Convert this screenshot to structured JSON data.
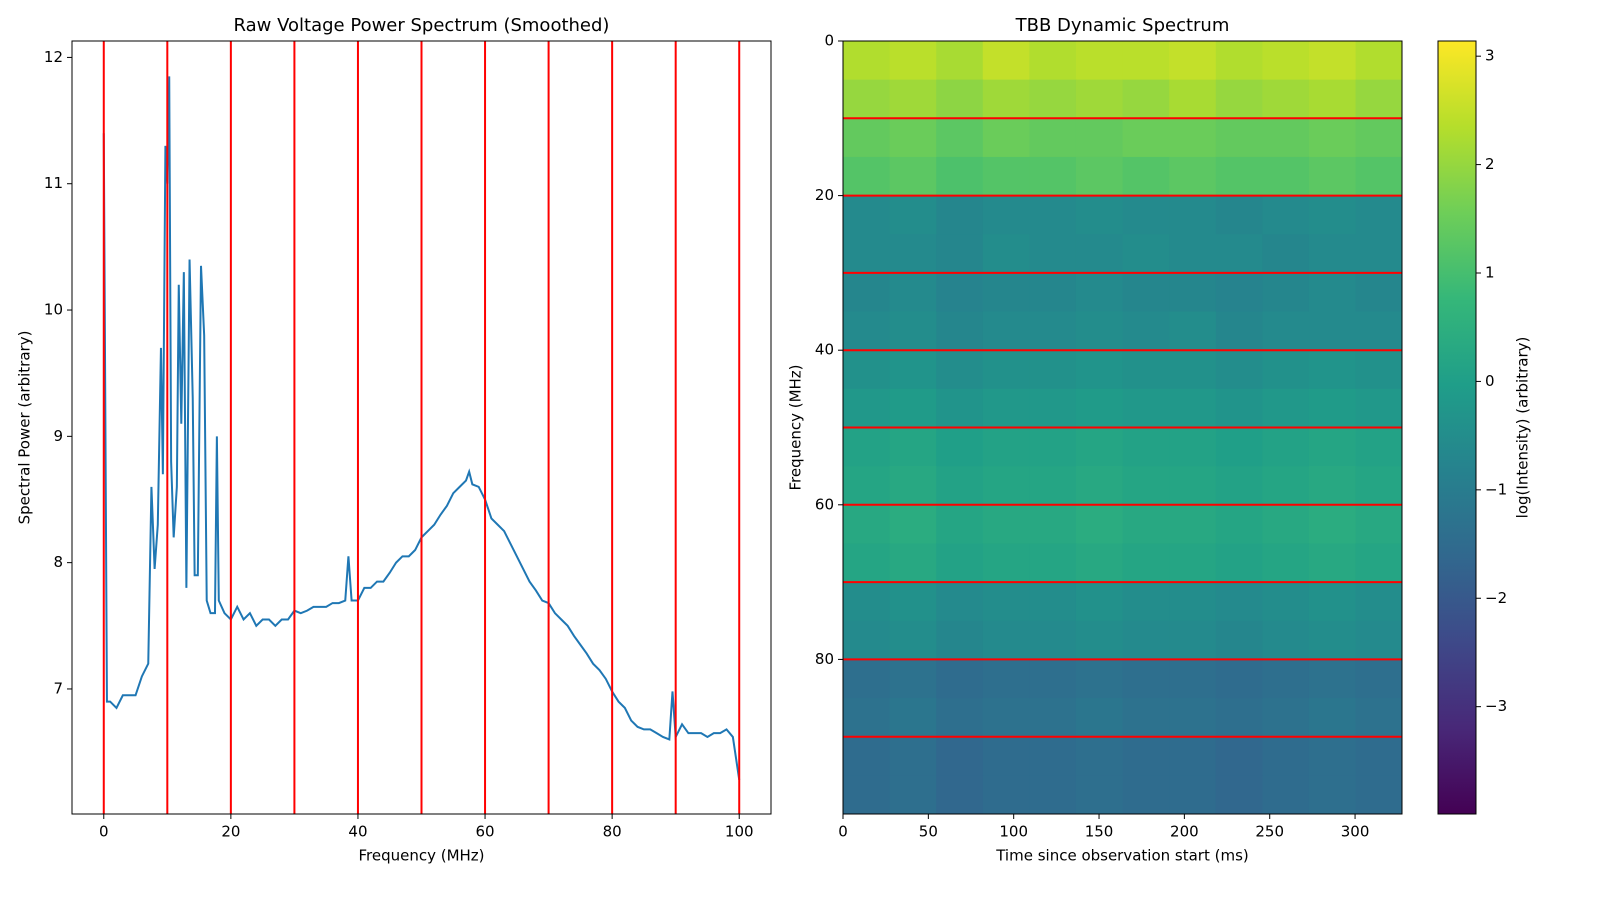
{
  "chart_data": [
    {
      "type": "line",
      "title": "Raw Voltage Power Spectrum (Smoothed)",
      "xlabel": "Frequency (MHz)",
      "ylabel": "Spectral Power (arbitrary)",
      "x": [
        0,
        0.5,
        1,
        2,
        3,
        4,
        5,
        6,
        7,
        7.5,
        8,
        8.5,
        9,
        9.3,
        9.7,
        10,
        10.3,
        10.6,
        11,
        11.5,
        11.8,
        12.2,
        12.6,
        13,
        13.5,
        14,
        14.3,
        14.8,
        15.3,
        15.8,
        16.2,
        16.8,
        17.5,
        17.8,
        18.1,
        19,
        20,
        21,
        22,
        23,
        24,
        25,
        26,
        27,
        28,
        29,
        30,
        31,
        32,
        33,
        34,
        35,
        36,
        37,
        38,
        38.5,
        39,
        40,
        41,
        42,
        43,
        44,
        45,
        46,
        47,
        48,
        49,
        50,
        51,
        52,
        53,
        54,
        55,
        56,
        57,
        57.5,
        58,
        59,
        60,
        61,
        62,
        63,
        64,
        65,
        66,
        67,
        68,
        69,
        70,
        71,
        72,
        73,
        74,
        75,
        76,
        77,
        78,
        79,
        80,
        81,
        82,
        83,
        84,
        85,
        86,
        87,
        88,
        89,
        89.5,
        90,
        91,
        92,
        93,
        94,
        95,
        96,
        97,
        98,
        99,
        100
      ],
      "series": [
        {
          "color": "#1f77b4",
          "values": [
            11.4,
            6.9,
            6.9,
            6.85,
            6.95,
            6.95,
            6.95,
            7.1,
            7.2,
            8.6,
            7.95,
            8.3,
            9.7,
            8.7,
            11.3,
            11.0,
            11.85,
            8.8,
            8.2,
            8.6,
            10.2,
            9.1,
            10.3,
            7.8,
            10.4,
            9.3,
            7.9,
            7.9,
            10.35,
            9.8,
            7.7,
            7.6,
            7.6,
            9.0,
            7.7,
            7.6,
            7.55,
            7.65,
            7.55,
            7.6,
            7.5,
            7.55,
            7.55,
            7.5,
            7.55,
            7.55,
            7.62,
            7.6,
            7.62,
            7.65,
            7.65,
            7.65,
            7.68,
            7.68,
            7.7,
            8.05,
            7.7,
            7.7,
            7.8,
            7.8,
            7.85,
            7.85,
            7.92,
            8.0,
            8.05,
            8.05,
            8.1,
            8.2,
            8.25,
            8.3,
            8.38,
            8.45,
            8.55,
            8.6,
            8.65,
            8.72,
            8.62,
            8.6,
            8.5,
            8.35,
            8.3,
            8.25,
            8.15,
            8.05,
            7.95,
            7.85,
            7.78,
            7.7,
            7.68,
            7.6,
            7.55,
            7.5,
            7.42,
            7.35,
            7.28,
            7.2,
            7.15,
            7.08,
            6.98,
            6.9,
            6.85,
            6.75,
            6.7,
            6.68,
            6.68,
            6.65,
            6.62,
            6.6,
            6.98,
            6.62,
            6.72,
            6.65,
            6.65,
            6.65,
            6.62,
            6.65,
            6.65,
            6.68,
            6.62,
            6.28
          ]
        }
      ],
      "xlim": [
        -5,
        105
      ],
      "ylim": [
        6.01,
        12.13
      ],
      "xticks": [
        0,
        20,
        40,
        60,
        80,
        100
      ],
      "yticks": [
        7,
        8,
        9,
        10,
        11,
        12
      ],
      "vlines": [
        0,
        10,
        20,
        30,
        40,
        50,
        60,
        70,
        80,
        90,
        100
      ],
      "vline_color": "#ff0000"
    },
    {
      "type": "heatmap",
      "title": "TBB Dynamic Spectrum",
      "xlabel": "Time since observation start (ms)",
      "ylabel": "Frequency (MHz)",
      "x_edges": [
        0,
        27.3,
        54.6,
        81.9,
        109.2,
        136.5,
        163.8,
        191.1,
        218.4,
        245.7,
        273,
        300.3,
        327.5
      ],
      "y_edges": [
        0,
        5,
        10,
        15,
        20,
        25,
        30,
        35,
        40,
        45,
        50,
        55,
        60,
        65,
        70,
        75,
        80,
        85,
        90,
        95,
        100
      ],
      "z": [
        [
          2.3,
          2.4,
          2.2,
          2.5,
          2.3,
          2.4,
          2.4,
          2.5,
          2.3,
          2.4,
          2.5,
          2.3
        ],
        [
          2.0,
          2.1,
          1.9,
          2.1,
          2.0,
          2.1,
          2.0,
          2.2,
          2.0,
          2.1,
          2.2,
          2.0
        ],
        [
          1.4,
          1.5,
          1.3,
          1.5,
          1.4,
          1.4,
          1.5,
          1.5,
          1.4,
          1.4,
          1.5,
          1.4
        ],
        [
          1.2,
          1.3,
          1.1,
          1.2,
          1.2,
          1.3,
          1.2,
          1.3,
          1.2,
          1.2,
          1.3,
          1.2
        ],
        [
          -0.6,
          -0.5,
          -0.7,
          -0.6,
          -0.6,
          -0.5,
          -0.6,
          -0.6,
          -0.7,
          -0.6,
          -0.5,
          -0.6
        ],
        [
          -0.6,
          -0.6,
          -0.7,
          -0.5,
          -0.6,
          -0.6,
          -0.5,
          -0.6,
          -0.6,
          -0.7,
          -0.6,
          -0.6
        ],
        [
          -0.7,
          -0.6,
          -0.8,
          -0.7,
          -0.7,
          -0.6,
          -0.7,
          -0.7,
          -0.8,
          -0.7,
          -0.6,
          -0.7
        ],
        [
          -0.6,
          -0.5,
          -0.7,
          -0.6,
          -0.6,
          -0.5,
          -0.6,
          -0.5,
          -0.7,
          -0.6,
          -0.6,
          -0.6
        ],
        [
          -0.4,
          -0.3,
          -0.5,
          -0.4,
          -0.4,
          -0.3,
          -0.4,
          -0.4,
          -0.5,
          -0.4,
          -0.3,
          -0.4
        ],
        [
          -0.2,
          -0.1,
          -0.3,
          -0.2,
          -0.2,
          -0.1,
          -0.2,
          -0.2,
          -0.3,
          -0.2,
          -0.1,
          -0.2
        ],
        [
          0.1,
          0.2,
          0.0,
          0.1,
          0.1,
          0.2,
          0.1,
          0.1,
          0.0,
          0.1,
          0.2,
          0.1
        ],
        [
          0.2,
          0.3,
          0.1,
          0.2,
          0.2,
          0.3,
          0.2,
          0.2,
          0.1,
          0.2,
          0.3,
          0.2
        ],
        [
          0.3,
          0.4,
          0.2,
          0.3,
          0.3,
          0.4,
          0.3,
          0.3,
          0.2,
          0.3,
          0.4,
          0.3
        ],
        [
          0.2,
          0.3,
          0.1,
          0.2,
          0.2,
          0.3,
          0.2,
          0.2,
          0.1,
          0.2,
          0.3,
          0.2
        ],
        [
          -0.5,
          -0.4,
          -0.6,
          -0.5,
          -0.5,
          -0.4,
          -0.5,
          -0.5,
          -0.6,
          -0.5,
          -0.4,
          -0.5
        ],
        [
          -0.6,
          -0.5,
          -0.7,
          -0.6,
          -0.6,
          -0.5,
          -0.6,
          -0.6,
          -0.7,
          -0.6,
          -0.5,
          -0.6
        ],
        [
          -1.4,
          -1.3,
          -1.5,
          -1.4,
          -1.4,
          -1.3,
          -1.4,
          -1.4,
          -1.5,
          -1.4,
          -1.3,
          -1.4
        ],
        [
          -1.3,
          -1.2,
          -1.4,
          -1.3,
          -1.3,
          -1.2,
          -1.3,
          -1.3,
          -1.4,
          -1.3,
          -1.2,
          -1.3
        ],
        [
          -1.5,
          -1.4,
          -1.6,
          -1.5,
          -1.5,
          -1.4,
          -1.5,
          -1.5,
          -1.6,
          -1.5,
          -1.4,
          -1.5
        ],
        [
          -1.5,
          -1.4,
          -1.6,
          -1.5,
          -1.5,
          -1.4,
          -1.5,
          -1.5,
          -1.6,
          -1.5,
          -1.4,
          -1.5
        ]
      ],
      "xlim": [
        0,
        327.5
      ],
      "ylim": [
        100,
        0
      ],
      "xticks": [
        0,
        50,
        100,
        150,
        200,
        250,
        300
      ],
      "yticks": [
        0,
        20,
        40,
        60,
        80
      ],
      "hlines": [
        10,
        20,
        30,
        40,
        50,
        60,
        70,
        80,
        90
      ],
      "hline_color": "#ff0000",
      "colorbar": {
        "label": "log(Intensity) (arbitrary)",
        "colormap": "viridis",
        "clim": [
          -3.99,
          3.14
        ],
        "ticks": [
          {
            "value": -3,
            "label": "−3"
          },
          {
            "value": -2,
            "label": "−2"
          },
          {
            "value": -1,
            "label": "−1"
          },
          0,
          1,
          2,
          3
        ]
      }
    }
  ]
}
